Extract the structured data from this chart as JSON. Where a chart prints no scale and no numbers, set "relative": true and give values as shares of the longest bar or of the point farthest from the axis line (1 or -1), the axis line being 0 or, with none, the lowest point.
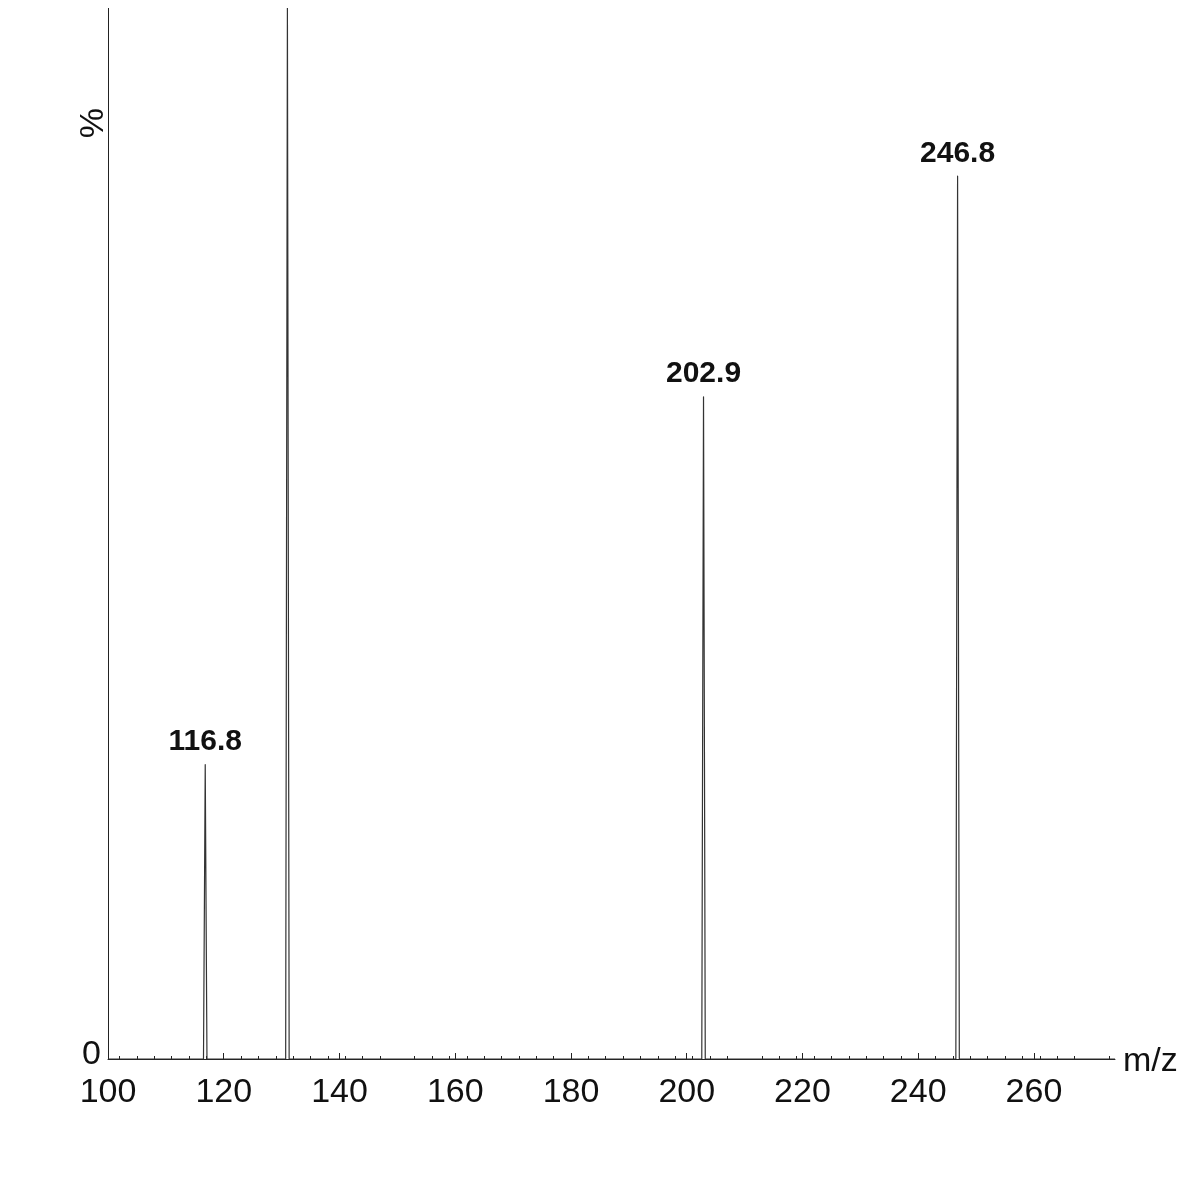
{
  "chart_data": {
    "type": "line",
    "relative": true,
    "xlabel": "m/z",
    "ylabel": "%",
    "xlim": [
      100,
      274
    ],
    "xticks": [
      100,
      120,
      140,
      160,
      180,
      200,
      220,
      240,
      260
    ],
    "x": [
      100,
      116.5,
      116.8,
      117.1,
      130.7,
      131,
      131.3,
      202.6,
      202.9,
      203.2,
      246.5,
      246.8,
      247.1,
      274
    ],
    "series": [
      {
        "color": "#333333",
        "values": [
          0,
          0,
          0.28,
          0,
          0,
          1,
          0,
          0,
          0.63,
          0,
          0,
          0.84,
          0,
          0
        ]
      }
    ],
    "annotations": [
      "0",
      {
        "text": "116.8",
        "x": 116.8,
        "y": 0.28
      },
      {
        "text": "202.9",
        "x": 202.9,
        "y": 0.63
      },
      {
        "text": "246.8",
        "x": 246.8,
        "y": 0.84
      }
    ],
    "grid": false,
    "marker": "none",
    "line_style": "solid"
  }
}
